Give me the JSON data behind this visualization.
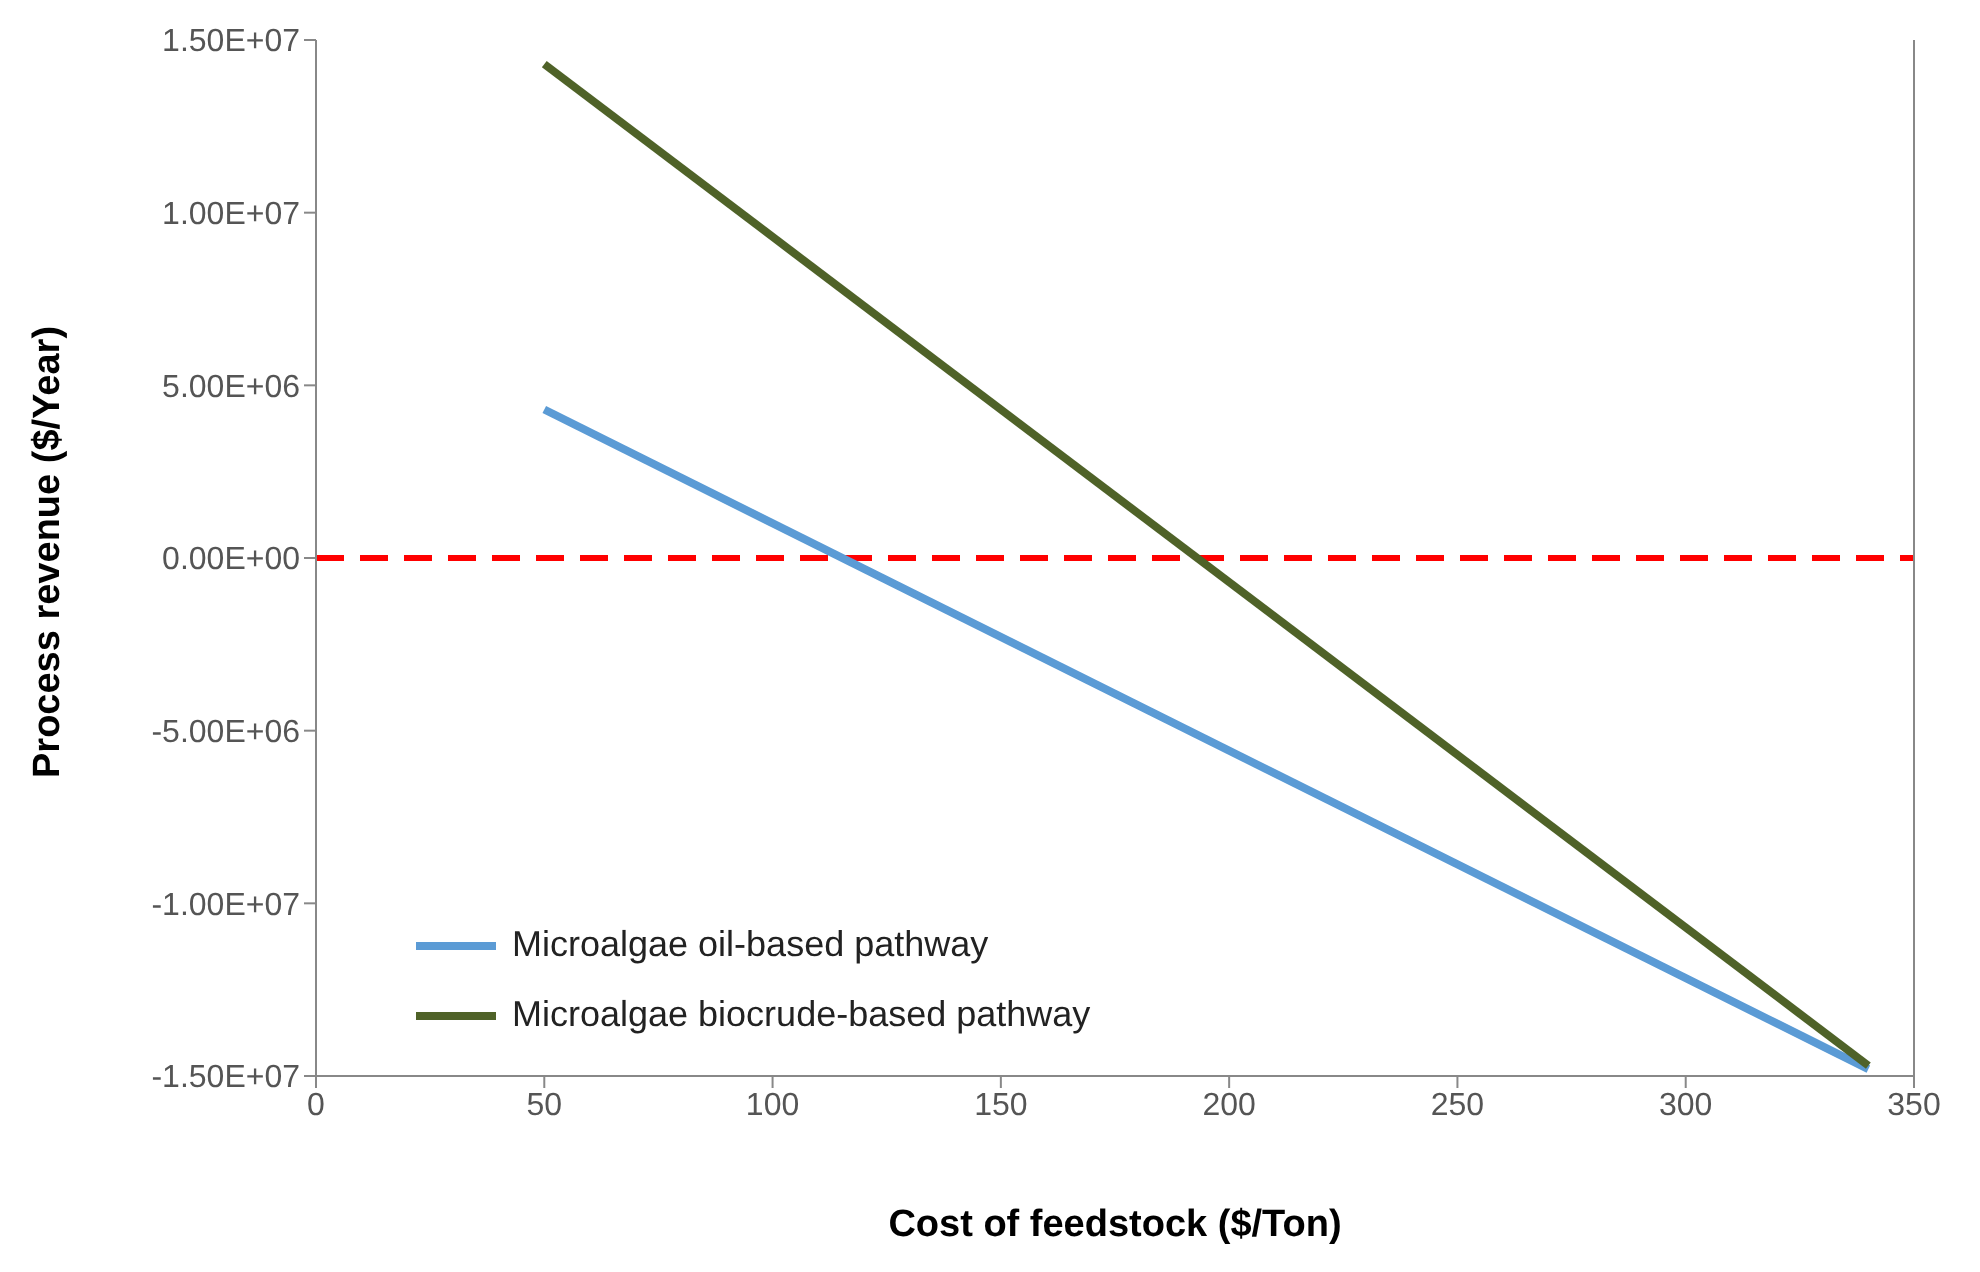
{
  "chart_data": {
    "type": "line",
    "xlabel": "Cost of feedstock ($/Ton)",
    "ylabel": "Process revenue ($/Year)",
    "x": [
      50,
      340
    ],
    "series": [
      {
        "name": "Microalgae oil-based pathway",
        "color": "#5b9bd5",
        "values": [
          4300000,
          -14800000
        ]
      },
      {
        "name": "Microalgae biocrude-based pathway",
        "color": "#4f6228",
        "values": [
          14300000,
          -14700000
        ]
      }
    ],
    "xlim": [
      0,
      350
    ],
    "xticks": [
      0,
      50,
      100,
      150,
      200,
      250,
      300,
      350
    ],
    "ylim": [
      -15000000,
      15000000
    ],
    "yticks": [
      {
        "value": -15000000,
        "label": "-1.50E+07"
      },
      {
        "value": -10000000,
        "label": "-1.00E+07"
      },
      {
        "value": -5000000,
        "label": "-5.00E+06"
      },
      {
        "value": 0,
        "label": "0.00E+00"
      },
      {
        "value": 5000000,
        "label": "5.00E+06"
      },
      {
        "value": 10000000,
        "label": "1.00E+07"
      },
      {
        "value": 15000000,
        "label": "1.50E+07"
      }
    ],
    "ref_lines": [
      {
        "axis": "y",
        "value": 0,
        "color": "#ff0000",
        "line_style": "dashed"
      }
    ],
    "grid": false,
    "legend": "bottom left",
    "marker": "none",
    "line_style": "solid"
  }
}
